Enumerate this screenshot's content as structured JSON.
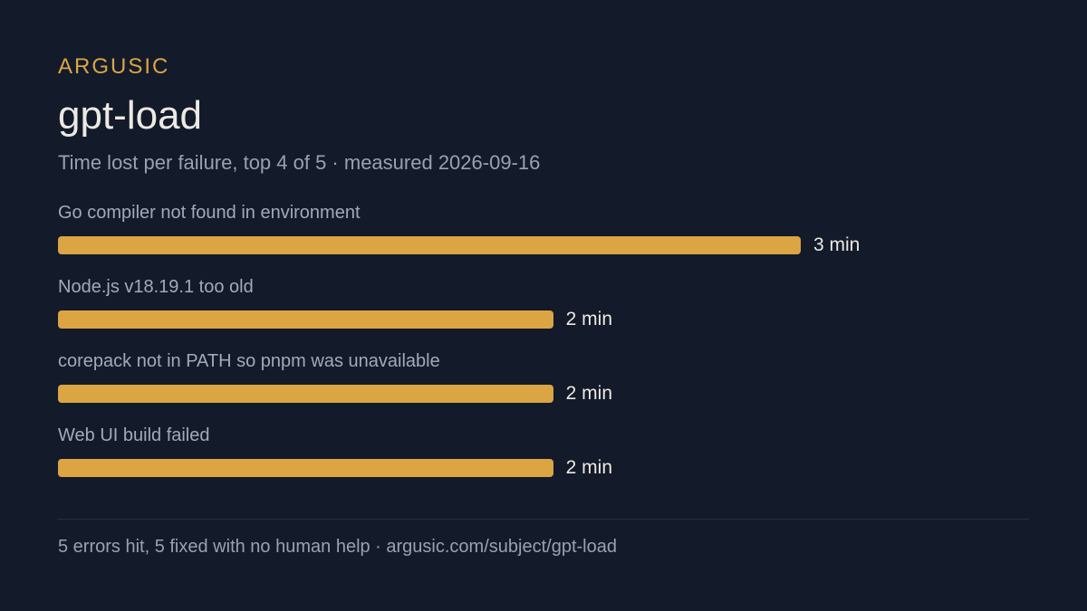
{
  "brand": "ARGUSIC",
  "title": "gpt-load",
  "subtitle": "Time lost per failure, top 4 of 5 · measured 2026-09-16",
  "footer": "5 errors hit, 5 fixed with no human help · argusic.com/subject/gpt-load",
  "colors": {
    "background": "#131a2a",
    "accent": "#dba544",
    "muted_text": "#9aa1ae",
    "bright_text": "#ece9e3"
  },
  "chart_data": {
    "type": "bar",
    "orientation": "horizontal",
    "categories": [
      "Go compiler not found in environment",
      "Node.js v18.19.1 too old",
      "corepack not in PATH so pnpm was unavailable",
      "Web UI build failed"
    ],
    "values": [
      3,
      2,
      2,
      2
    ],
    "value_labels": [
      "3 min",
      "2 min",
      "2 min",
      "2 min"
    ],
    "unit": "min",
    "xlim": [
      0,
      3
    ],
    "grid": false
  }
}
